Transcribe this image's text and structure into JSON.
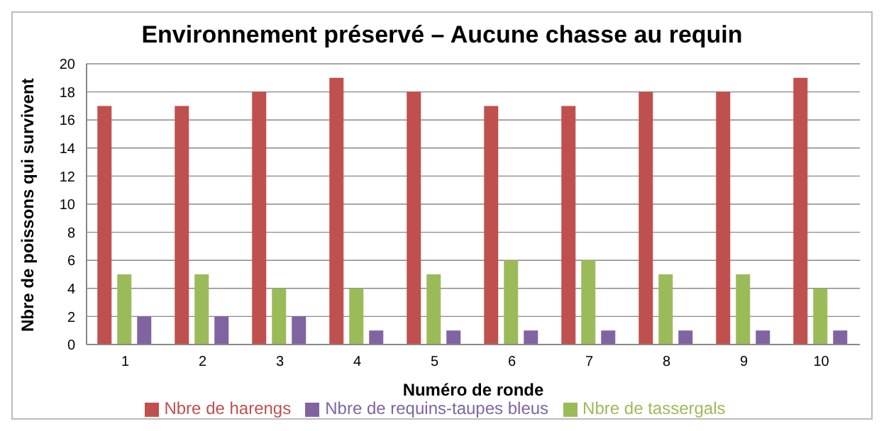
{
  "chart_data": {
    "type": "bar",
    "title": "Environnement préservé – Aucune chasse au requin",
    "xlabel": "Numéro de ronde",
    "ylabel": "Nbre de poissons qui survivent",
    "categories": [
      "1",
      "2",
      "3",
      "4",
      "5",
      "6",
      "7",
      "8",
      "9",
      "10"
    ],
    "series": [
      {
        "name": "Nbre de harengs",
        "color": "#c0504d",
        "values": [
          17,
          17,
          18,
          19,
          18,
          17,
          17,
          18,
          18,
          19
        ]
      },
      {
        "name": "Nbre de tassergals",
        "color": "#9bbb59",
        "values": [
          5,
          5,
          4,
          4,
          5,
          6,
          6,
          5,
          5,
          4
        ]
      },
      {
        "name": "Nbre de requins-taupes bleus",
        "color": "#8064a2",
        "values": [
          2,
          2,
          2,
          1,
          1,
          1,
          1,
          1,
          1,
          1
        ]
      }
    ],
    "ylim": [
      0,
      20
    ],
    "yticks": [
      0,
      2,
      4,
      6,
      8,
      10,
      12,
      14,
      16,
      18,
      20
    ],
    "grid": "y",
    "legend": "bottom"
  }
}
